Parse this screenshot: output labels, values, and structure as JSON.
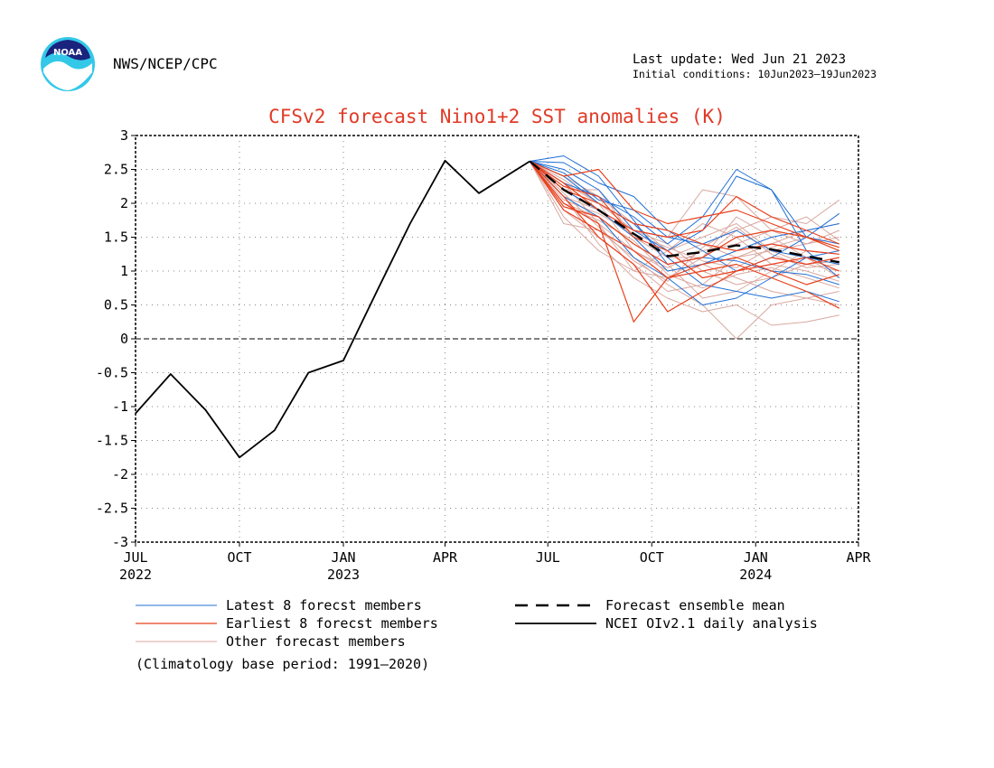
{
  "header": {
    "logo_text": "NOAA",
    "source": "NWS/NCEP/CPC",
    "last_update": "Last update: Wed Jun 21 2023",
    "initial_conditions": "Initial conditions: 10Jun2023–19Jun2023"
  },
  "footer": {
    "climatology_note": "(Climatology base period: 1991—2020)"
  },
  "chart_data": {
    "type": "line",
    "title": "CFSv2 forecast Nino1+2 SST anomalies (K)",
    "xlabel": "",
    "ylabel": "",
    "ylim": [
      -3,
      3
    ],
    "xlim": [
      "2022-07-01",
      "2024-04-01"
    ],
    "grid": true,
    "zero_line": true,
    "y_ticks": [
      "3",
      "2.5",
      "2",
      "1.5",
      "1",
      "0.5",
      "0",
      "-0.5",
      "-1",
      "-1.5",
      "-2",
      "-2.5",
      "-3"
    ],
    "x_ticks": [
      {
        "date": "2022-07-01",
        "label": "JUL",
        "sublabel": "2022"
      },
      {
        "date": "2022-10-01",
        "label": "OCT",
        "sublabel": ""
      },
      {
        "date": "2023-01-01",
        "label": "JAN",
        "sublabel": "2023"
      },
      {
        "date": "2023-04-01",
        "label": "APR",
        "sublabel": ""
      },
      {
        "date": "2023-07-01",
        "label": "JUL",
        "sublabel": ""
      },
      {
        "date": "2023-10-01",
        "label": "OCT",
        "sublabel": ""
      },
      {
        "date": "2024-01-01",
        "label": "JAN",
        "sublabel": "2024"
      },
      {
        "date": "2024-04-01",
        "label": "APR",
        "sublabel": ""
      }
    ],
    "colors": {
      "title": "#e03a26",
      "analysis": "#000000",
      "mean": "#000000",
      "latest": "#1f6fd6",
      "earliest": "#e8401c",
      "other": "#d9a8a0"
    },
    "legend": [
      {
        "label": "Latest 8 forecst members",
        "style": "latest"
      },
      {
        "label": "Earliest 8 forecst members",
        "style": "earliest"
      },
      {
        "label": "Other forecast members",
        "style": "other"
      },
      {
        "label": "Forecast ensemble mean",
        "style": "mean"
      },
      {
        "label": "NCEI OIv2.1 daily analysis",
        "style": "analysis"
      }
    ],
    "forecast_months": [
      "2023-06-15",
      "2023-07-15",
      "2023-08-15",
      "2023-09-15",
      "2023-10-15",
      "2023-11-15",
      "2023-12-15",
      "2024-01-15",
      "2024-02-15",
      "2024-03-15"
    ],
    "series": [
      {
        "name": "NCEI OIv2.1 daily analysis",
        "style": "analysis",
        "x": [
          "2022-07-01",
          "2022-08-01",
          "2022-09-01",
          "2022-10-01",
          "2022-11-01",
          "2022-12-01",
          "2023-01-01",
          "2023-02-01",
          "2023-03-01",
          "2023-04-01",
          "2023-05-01",
          "2023-06-15"
        ],
        "y": [
          -1.1,
          -0.52,
          -1.05,
          -1.75,
          -1.35,
          -0.5,
          -0.32,
          0.75,
          1.7,
          2.63,
          2.15,
          2.62
        ]
      },
      {
        "name": "Forecast ensemble mean",
        "style": "mean",
        "y": [
          2.62,
          2.2,
          1.9,
          1.55,
          1.22,
          1.28,
          1.38,
          1.32,
          1.22,
          1.13
        ]
      },
      {
        "style": "latest",
        "y": [
          2.62,
          2.3,
          2.1,
          1.8,
          1.4,
          1.8,
          2.5,
          2.2,
          1.3,
          0.9
        ]
      },
      {
        "style": "latest",
        "y": [
          2.62,
          2.6,
          2.3,
          2.1,
          1.6,
          1.3,
          1.0,
          1.2,
          1.5,
          1.85
        ]
      },
      {
        "style": "latest",
        "y": [
          2.62,
          2.4,
          2.0,
          1.7,
          1.2,
          0.8,
          0.7,
          0.6,
          0.7,
          0.55
        ]
      },
      {
        "style": "latest",
        "y": [
          2.62,
          2.2,
          1.9,
          1.5,
          1.0,
          1.1,
          1.3,
          1.5,
          1.6,
          1.7
        ]
      },
      {
        "style": "latest",
        "y": [
          2.62,
          2.5,
          2.2,
          1.6,
          1.3,
          1.6,
          2.4,
          2.2,
          1.5,
          1.4
        ]
      },
      {
        "style": "latest",
        "y": [
          2.62,
          2.1,
          1.8,
          1.2,
          0.9,
          0.5,
          0.6,
          0.9,
          1.2,
          1.3
        ]
      },
      {
        "style": "latest",
        "y": [
          2.62,
          2.45,
          2.05,
          1.9,
          1.5,
          1.4,
          1.6,
          1.3,
          1.2,
          1.1
        ]
      },
      {
        "style": "latest",
        "y": [
          2.62,
          2.7,
          2.4,
          1.75,
          1.1,
          1.2,
          1.15,
          1.0,
          0.95,
          0.8
        ]
      },
      {
        "style": "earliest",
        "y": [
          2.62,
          2.4,
          2.5,
          1.9,
          1.7,
          1.8,
          1.9,
          1.7,
          1.5,
          1.3
        ]
      },
      {
        "style": "earliest",
        "y": [
          2.62,
          2.0,
          1.7,
          0.25,
          0.9,
          1.1,
          1.2,
          1.0,
          0.8,
          0.95
        ]
      },
      {
        "style": "earliest",
        "y": [
          2.62,
          2.1,
          1.5,
          1.1,
          0.4,
          0.7,
          1.0,
          1.2,
          1.1,
          1.2
        ]
      },
      {
        "style": "earliest",
        "y": [
          2.62,
          2.3,
          1.9,
          1.6,
          1.5,
          1.6,
          2.1,
          1.8,
          1.6,
          1.4
        ]
      },
      {
        "style": "earliest",
        "y": [
          2.62,
          1.9,
          1.6,
          1.3,
          0.9,
          1.0,
          1.1,
          0.9,
          0.7,
          0.45
        ]
      },
      {
        "style": "earliest",
        "y": [
          2.62,
          2.2,
          2.0,
          1.7,
          1.6,
          1.4,
          1.3,
          1.4,
          1.3,
          1.25
        ]
      },
      {
        "style": "earliest",
        "y": [
          2.62,
          1.95,
          1.8,
          1.4,
          1.1,
          1.2,
          1.5,
          1.6,
          1.5,
          1.35
        ]
      },
      {
        "style": "earliest",
        "y": [
          2.62,
          2.25,
          2.1,
          1.5,
          1.3,
          0.9,
          1.0,
          1.1,
          1.2,
          1.0
        ]
      },
      {
        "style": "other",
        "y": [
          2.62,
          2.2,
          1.9,
          1.5,
          1.2,
          1.2,
          1.6,
          1.8,
          1.7,
          2.05
        ]
      },
      {
        "style": "other",
        "y": [
          2.62,
          2.0,
          1.7,
          1.3,
          1.0,
          1.1,
          0.9,
          0.7,
          0.6,
          0.5
        ]
      },
      {
        "style": "other",
        "y": [
          2.62,
          1.7,
          1.6,
          1.2,
          0.8,
          0.5,
          0.0,
          0.5,
          0.6,
          0.7
        ]
      },
      {
        "style": "other",
        "y": [
          2.62,
          2.3,
          2.0,
          1.6,
          1.5,
          2.2,
          2.1,
          1.6,
          1.4,
          1.5
        ]
      },
      {
        "style": "other",
        "y": [
          2.62,
          2.1,
          1.4,
          0.9,
          0.6,
          0.4,
          0.5,
          0.2,
          0.25,
          0.35
        ]
      },
      {
        "style": "other",
        "y": [
          2.62,
          2.4,
          2.1,
          1.7,
          1.3,
          1.5,
          1.7,
          1.3,
          1.1,
          1.0
        ]
      },
      {
        "style": "other",
        "y": [
          2.62,
          1.9,
          1.5,
          1.1,
          0.7,
          0.8,
          1.2,
          1.4,
          1.6,
          1.7
        ]
      },
      {
        "style": "other",
        "y": [
          2.62,
          2.0,
          1.8,
          1.4,
          1.1,
          0.6,
          0.7,
          1.0,
          1.3,
          1.25
        ]
      },
      {
        "style": "other",
        "y": [
          2.62,
          2.3,
          1.7,
          1.0,
          0.9,
          1.2,
          1.8,
          1.5,
          1.2,
          0.9
        ]
      },
      {
        "style": "other",
        "y": [
          2.62,
          2.1,
          1.9,
          1.6,
          1.4,
          1.0,
          0.8,
          0.9,
          1.1,
          1.15
        ]
      },
      {
        "style": "other",
        "y": [
          2.62,
          2.2,
          2.2,
          1.5,
          1.2,
          1.4,
          1.2,
          1.3,
          1.4,
          1.6
        ]
      },
      {
        "style": "other",
        "y": [
          2.62,
          1.8,
          1.3,
          1.0,
          1.3,
          1.7,
          1.5,
          1.1,
          1.0,
          0.85
        ]
      },
      {
        "style": "other",
        "y": [
          2.62,
          2.35,
          2.0,
          1.3,
          1.05,
          1.3,
          1.4,
          1.6,
          1.8,
          1.45
        ]
      },
      {
        "style": "other",
        "y": [
          2.62,
          1.95,
          1.75,
          1.45,
          0.95,
          0.75,
          0.95,
          1.05,
          0.9,
          0.75
        ]
      },
      {
        "style": "other",
        "y": [
          2.62,
          2.15,
          1.65,
          1.15,
          0.85,
          1.35,
          1.65,
          1.25,
          1.05,
          1.1
        ]
      },
      {
        "style": "other",
        "y": [
          2.62,
          2.05,
          1.85,
          1.55,
          1.35,
          1.15,
          1.05,
          1.35,
          1.5,
          1.3
        ]
      }
    ]
  }
}
